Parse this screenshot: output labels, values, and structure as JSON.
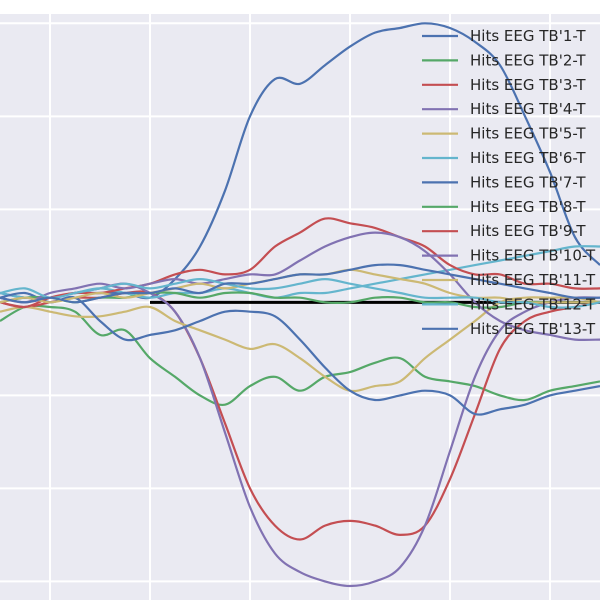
{
  "chart_data": {
    "type": "line",
    "title": "",
    "xlabel": "",
    "ylabel": "",
    "grid": true,
    "background": "#eaeaf2",
    "legend_position": "top-right",
    "xlim": [
      -0.1,
      1.1
    ],
    "ylim": [
      -3.2,
      3.1
    ],
    "baseline": {
      "x": [
        0.2,
        1.1
      ],
      "y": 0.0,
      "color": "#000000"
    },
    "x": [
      -0.1,
      -0.05,
      0.0,
      0.05,
      0.1,
      0.15,
      0.2,
      0.25,
      0.3,
      0.35,
      0.4,
      0.45,
      0.5,
      0.55,
      0.6,
      0.65,
      0.7,
      0.75,
      0.8,
      0.85,
      0.9,
      0.95,
      1.0,
      1.05,
      1.1
    ],
    "series": [
      {
        "name": "Hits EEG TB'1-T",
        "color": "#4c72b0",
        "values": [
          0.1,
          0.05,
          0.05,
          0.1,
          0.1,
          0.1,
          0.05,
          0.25,
          0.6,
          1.2,
          2.0,
          2.4,
          2.35,
          2.55,
          2.75,
          2.9,
          2.95,
          3.0,
          2.95,
          2.8,
          2.55,
          2.0,
          1.4,
          0.7,
          0.4
        ]
      },
      {
        "name": "Hits EEG TB'2-T",
        "color": "#55a868",
        "values": [
          -0.2,
          -0.05,
          -0.05,
          -0.1,
          -0.35,
          -0.3,
          -0.6,
          -0.8,
          -1.0,
          -1.1,
          -0.9,
          -0.8,
          -0.95,
          -0.8,
          -0.75,
          -0.65,
          -0.6,
          -0.8,
          -0.85,
          -0.9,
          -1.0,
          -1.05,
          -0.95,
          -0.9,
          -0.85
        ]
      },
      {
        "name": "Hits EEG TB'3-T",
        "color": "#c44e52",
        "values": [
          0.0,
          -0.05,
          0.0,
          0.05,
          0.05,
          0.1,
          0.1,
          -0.1,
          -0.6,
          -1.3,
          -2.0,
          -2.4,
          -2.55,
          -2.4,
          -2.35,
          -2.4,
          -2.5,
          -2.4,
          -1.9,
          -1.2,
          -0.5,
          -0.2,
          -0.1,
          -0.05,
          0.0
        ]
      },
      {
        "name": "Hits EEG TB'4-T",
        "color": "#8172b2",
        "values": [
          0.05,
          0.0,
          0.05,
          0.1,
          0.15,
          0.2,
          0.1,
          -0.1,
          -0.6,
          -1.4,
          -2.2,
          -2.7,
          -2.9,
          -3.0,
          -3.05,
          -3.0,
          -2.85,
          -2.4,
          -1.6,
          -0.8,
          -0.3,
          -0.1,
          0.0,
          0.05,
          0.05
        ]
      },
      {
        "name": "Hits EEG TB'5-T",
        "color": "#ccb974",
        "values": [
          -0.1,
          -0.05,
          -0.1,
          -0.15,
          -0.15,
          -0.1,
          -0.05,
          -0.2,
          -0.3,
          -0.4,
          -0.5,
          -0.45,
          -0.6,
          -0.8,
          -0.95,
          -0.9,
          -0.85,
          -0.6,
          -0.4,
          -0.2,
          0.0,
          0.05,
          0.05,
          0.05,
          0.0
        ]
      },
      {
        "name": "Hits EEG TB'6-T",
        "color": "#64b5cd",
        "values": [
          0.1,
          0.05,
          0.05,
          0.1,
          0.15,
          0.1,
          0.05,
          0.1,
          0.1,
          0.15,
          0.1,
          0.05,
          0.1,
          0.1,
          0.15,
          0.2,
          0.25,
          0.3,
          0.35,
          0.4,
          0.45,
          0.5,
          0.55,
          0.6,
          0.6
        ]
      },
      {
        "name": "Hits EEG TB'7-T",
        "color": "#4c72b0",
        "values": [
          0.05,
          0.1,
          0.0,
          0.05,
          -0.2,
          -0.4,
          -0.35,
          -0.3,
          -0.2,
          -0.1,
          -0.1,
          -0.15,
          -0.4,
          -0.7,
          -0.95,
          -1.05,
          -1.0,
          -0.95,
          -1.0,
          -1.2,
          -1.15,
          -1.1,
          -1.0,
          -0.95,
          -0.9
        ]
      },
      {
        "name": "Hits EEG TB'8-T",
        "color": "#55a868",
        "values": [
          0.0,
          0.05,
          0.05,
          0.0,
          0.05,
          0.05,
          0.1,
          0.1,
          0.05,
          0.1,
          0.1,
          0.05,
          0.05,
          0.0,
          0.0,
          0.05,
          0.05,
          0.0,
          0.0,
          -0.05,
          -0.05,
          0.0,
          0.0,
          0.0,
          0.0
        ]
      },
      {
        "name": "Hits EEG TB'9-T",
        "color": "#c44e52",
        "values": [
          0.0,
          -0.05,
          0.05,
          0.1,
          0.1,
          0.15,
          0.2,
          0.3,
          0.35,
          0.3,
          0.35,
          0.6,
          0.75,
          0.9,
          0.85,
          0.8,
          0.7,
          0.6,
          0.4,
          0.3,
          0.3,
          0.2,
          0.2,
          0.15,
          0.15
        ]
      },
      {
        "name": "Hits EEG TB'10-T",
        "color": "#8172b2",
        "values": [
          0.05,
          0.0,
          0.1,
          0.15,
          0.2,
          0.15,
          0.2,
          0.25,
          0.2,
          0.25,
          0.3,
          0.3,
          0.45,
          0.6,
          0.7,
          0.75,
          0.7,
          0.55,
          0.3,
          0.0,
          -0.2,
          -0.3,
          -0.35,
          -0.4,
          -0.4
        ]
      },
      {
        "name": "Hits EEG TB'11-T",
        "color": "#ccb974",
        "values": [
          0.0,
          0.05,
          0.0,
          0.05,
          0.1,
          0.05,
          0.1,
          0.15,
          0.2,
          0.15,
          0.2,
          0.25,
          0.3,
          0.3,
          0.35,
          0.3,
          0.25,
          0.2,
          0.1,
          0.05,
          0.05,
          0.0,
          0.0,
          0.0,
          0.0
        ]
      },
      {
        "name": "Hits EEG TB'12-T",
        "color": "#64b5cd",
        "values": [
          0.1,
          0.15,
          0.05,
          0.1,
          0.15,
          0.2,
          0.15,
          0.2,
          0.25,
          0.2,
          0.15,
          0.15,
          0.2,
          0.25,
          0.2,
          0.15,
          0.1,
          0.05,
          0.05,
          0.05,
          0.0,
          0.0,
          -0.05,
          -0.05,
          0.0
        ]
      },
      {
        "name": "Hits EEG TB'13-T",
        "color": "#4c72b0",
        "values": [
          0.05,
          0.0,
          0.05,
          0.0,
          0.05,
          0.1,
          0.1,
          0.15,
          0.1,
          0.2,
          0.2,
          0.25,
          0.3,
          0.3,
          0.35,
          0.4,
          0.4,
          0.35,
          0.3,
          0.25,
          0.2,
          0.15,
          0.1,
          0.05,
          0.05
        ]
      }
    ]
  }
}
